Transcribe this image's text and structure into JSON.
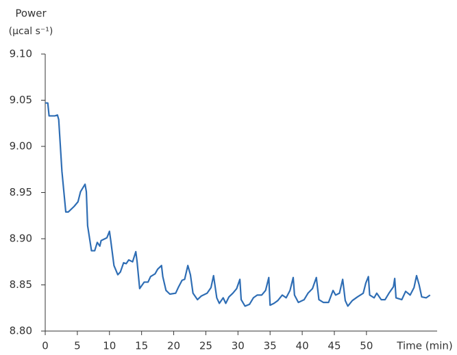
{
  "chart_data": {
    "type": "line",
    "y_label": "Power",
    "y_unit": "(µcal s⁻¹)",
    "x_label": "Time (min)",
    "xlim": [
      0,
      61
    ],
    "ylim": [
      8.8,
      9.1
    ],
    "xticks": [
      0,
      5,
      10,
      15,
      20,
      25,
      30,
      35,
      40,
      45,
      50
    ],
    "yticks": [
      {
        "value": 8.8,
        "label": "8.80"
      },
      8.85,
      {
        "value": 8.9,
        "label": "8.90"
      },
      8.95,
      {
        "value": 9.0,
        "label": "9.00"
      },
      9.05,
      {
        "value": 9.1,
        "label": "9.10"
      }
    ],
    "series": [
      {
        "color": "#2e6db4",
        "x": [
          0,
          0.4,
          0.6,
          1.5,
          1.9,
          2.1,
          2.6,
          3.2,
          3.6,
          4.5,
          5.1,
          5.5,
          6.2,
          6.4,
          6.6,
          7.2,
          7.7,
          8.1,
          8.5,
          8.7,
          9.6,
          10.0,
          10.2,
          10.7,
          11.3,
          11.7,
          12.2,
          12.6,
          13.0,
          13.6,
          14.1,
          14.3,
          14.7,
          15.4,
          16.0,
          16.4,
          17.1,
          17.5,
          18.1,
          18.3,
          18.8,
          19.4,
          20.3,
          20.7,
          21.3,
          21.7,
          22.2,
          22.6,
          23.0,
          23.7,
          24.3,
          25.2,
          25.8,
          26.2,
          26.7,
          27.1,
          27.7,
          28.1,
          28.6,
          29.2,
          29.8,
          30.3,
          30.5,
          31.1,
          31.8,
          32.4,
          33.0,
          33.7,
          34.3,
          34.8,
          35.0,
          35.6,
          36.2,
          36.9,
          37.5,
          38.1,
          38.6,
          38.8,
          39.4,
          40.3,
          40.9,
          41.6,
          42.2,
          42.6,
          43.3,
          44.1,
          44.8,
          45.2,
          45.8,
          46.3,
          46.7,
          47.1,
          47.8,
          48.6,
          49.5,
          49.9,
          50.3,
          50.5,
          51.2,
          51.6,
          52.3,
          52.9,
          53.5,
          54.2,
          54.4,
          54.6,
          55.5,
          56.1,
          56.8,
          57.4,
          57.8,
          58.2,
          58.6,
          59.3,
          59.9
        ],
        "values": [
          9.047,
          9.047,
          9.033,
          9.033,
          9.034,
          9.029,
          8.973,
          8.929,
          8.929,
          8.935,
          8.94,
          8.951,
          8.959,
          8.951,
          8.914,
          8.887,
          8.887,
          8.896,
          8.892,
          8.898,
          8.901,
          8.908,
          8.898,
          8.871,
          8.861,
          8.864,
          8.874,
          8.873,
          8.877,
          8.875,
          8.886,
          8.875,
          8.846,
          8.853,
          8.853,
          8.859,
          8.862,
          8.867,
          8.871,
          8.859,
          8.844,
          8.84,
          8.841,
          8.847,
          8.855,
          8.856,
          8.871,
          8.861,
          8.841,
          8.834,
          8.838,
          8.841,
          8.847,
          8.86,
          8.836,
          8.83,
          8.836,
          8.83,
          8.837,
          8.841,
          8.846,
          8.856,
          8.834,
          8.827,
          8.829,
          8.836,
          8.839,
          8.839,
          8.844,
          8.858,
          8.828,
          8.83,
          8.833,
          8.839,
          8.836,
          8.844,
          8.858,
          8.839,
          8.831,
          8.834,
          8.841,
          8.846,
          8.858,
          8.834,
          8.831,
          8.831,
          8.844,
          8.839,
          8.841,
          8.856,
          8.833,
          8.827,
          8.833,
          8.837,
          8.841,
          8.852,
          8.859,
          8.839,
          8.836,
          8.841,
          8.834,
          8.834,
          8.841,
          8.848,
          8.857,
          8.836,
          8.834,
          8.843,
          8.839,
          8.847,
          8.86,
          8.85,
          8.837,
          8.836,
          8.839
        ]
      }
    ]
  }
}
